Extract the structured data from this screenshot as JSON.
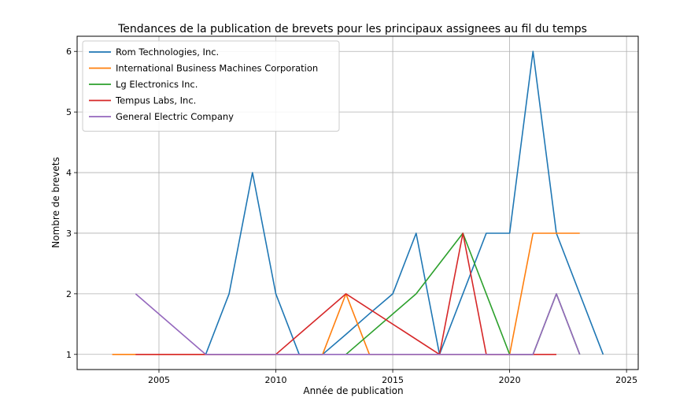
{
  "chart_data": {
    "type": "line",
    "title": "Tendances de la publication de brevets pour les principaux assignees au fil du temps",
    "xlabel": "Année de publication",
    "ylabel": "Nombre de brevets",
    "xlim": [
      2001.5,
      2025.5
    ],
    "ylim": [
      0.75,
      6.25
    ],
    "xticks": [
      2005,
      2010,
      2015,
      2020,
      2025
    ],
    "yticks": [
      1,
      2,
      3,
      4,
      5,
      6
    ],
    "grid": true,
    "legend_position": "top-left",
    "series": [
      {
        "name": "Rom Technologies, Inc.",
        "color": "#1f77b4",
        "points": [
          [
            2007,
            1
          ],
          [
            2008,
            2
          ],
          [
            2009,
            4
          ],
          [
            2010,
            2
          ],
          [
            2011,
            1
          ],
          [
            2012,
            1
          ],
          [
            2013,
            1.33
          ],
          [
            2014,
            1.67
          ],
          [
            2015,
            2
          ],
          [
            2016,
            3
          ],
          [
            2017,
            1
          ],
          [
            2018,
            2
          ],
          [
            2019,
            3
          ],
          [
            2020,
            3
          ],
          [
            2021,
            6
          ],
          [
            2022,
            3
          ],
          [
            2023,
            2
          ],
          [
            2024,
            1
          ]
        ]
      },
      {
        "name": "International Business Machines Corporation",
        "color": "#ff7f0e",
        "points": [
          [
            2003,
            1
          ],
          [
            2004,
            1
          ],
          [
            2012,
            1
          ],
          [
            2013,
            2
          ],
          [
            2014,
            1
          ],
          [
            2020,
            1
          ],
          [
            2021,
            3
          ],
          [
            2022,
            3
          ],
          [
            2023,
            3
          ]
        ]
      },
      {
        "name": "Lg Electronics Inc.",
        "color": "#2ca02c",
        "points": [
          [
            2013,
            1
          ],
          [
            2016,
            2
          ],
          [
            2018,
            3
          ],
          [
            2020,
            1
          ],
          [
            2021,
            1
          ],
          [
            2022,
            2
          ],
          [
            2023,
            1
          ]
        ]
      },
      {
        "name": "Tempus Labs, Inc.",
        "color": "#d62728",
        "points": [
          [
            2004,
            1
          ],
          [
            2010,
            1
          ],
          [
            2013,
            2
          ],
          [
            2017,
            1
          ],
          [
            2018,
            3
          ],
          [
            2019,
            1
          ],
          [
            2022,
            1
          ]
        ]
      },
      {
        "name": "General Electric Company",
        "color": "#9467bd",
        "points": [
          [
            2004,
            2
          ],
          [
            2007,
            1
          ],
          [
            2021,
            1
          ],
          [
            2022,
            2
          ],
          [
            2023,
            1
          ]
        ]
      }
    ]
  }
}
